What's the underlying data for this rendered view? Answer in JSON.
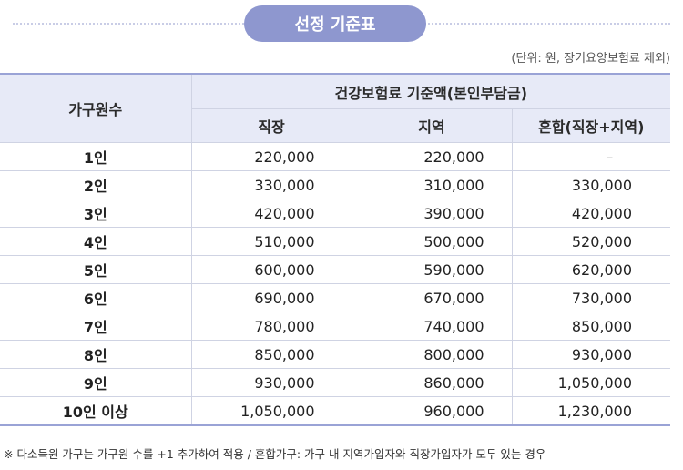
{
  "title": "선정 기준표",
  "unit_note": "(단위: 원, 장기요양보험료 제외)",
  "table": {
    "header_household": "가구원수",
    "header_group": "건강보험료 기준액(본인부담금)",
    "columns": [
      "직장",
      "지역",
      "혼합(직장+지역)"
    ],
    "rows": [
      {
        "label": "1인",
        "values": [
          "220,000",
          "220,000",
          "–"
        ]
      },
      {
        "label": "2인",
        "values": [
          "330,000",
          "310,000",
          "330,000"
        ]
      },
      {
        "label": "3인",
        "values": [
          "420,000",
          "390,000",
          "420,000"
        ]
      },
      {
        "label": "4인",
        "values": [
          "510,000",
          "500,000",
          "520,000"
        ]
      },
      {
        "label": "5인",
        "values": [
          "600,000",
          "590,000",
          "620,000"
        ]
      },
      {
        "label": "6인",
        "values": [
          "690,000",
          "670,000",
          "730,000"
        ]
      },
      {
        "label": "7인",
        "values": [
          "780,000",
          "740,000",
          "850,000"
        ]
      },
      {
        "label": "8인",
        "values": [
          "850,000",
          "800,000",
          "930,000"
        ]
      },
      {
        "label": "9인",
        "values": [
          "930,000",
          "860,000",
          "1,050,000"
        ]
      },
      {
        "label": "10인 이상",
        "values": [
          "1,050,000",
          "960,000",
          "1,230,000"
        ]
      }
    ]
  },
  "footnote": "※ 다소득원 가구는 가구원 수를 +1 추가하여 적용 / 혼합가구: 가구 내 지역가입자와 직장가입자가 모두 있는 경우"
}
